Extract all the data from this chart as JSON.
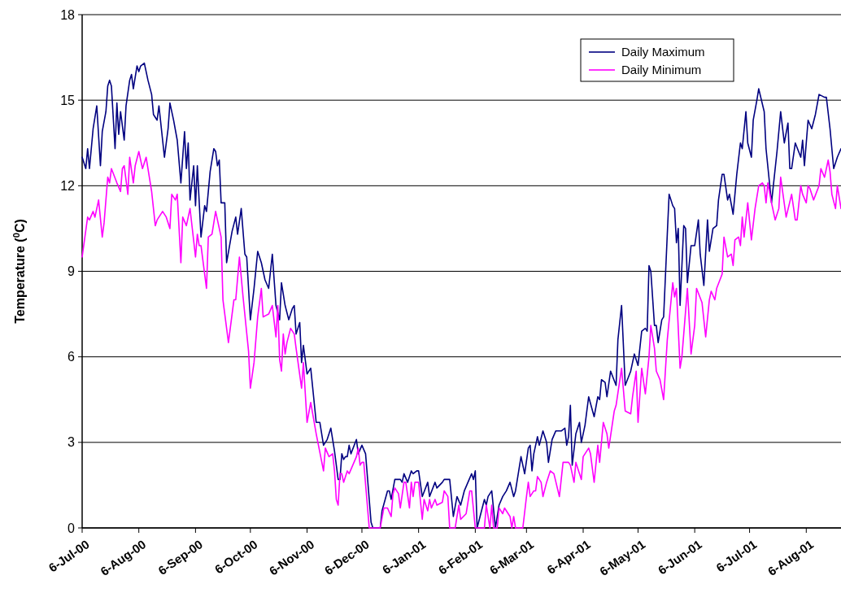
{
  "chart_data": {
    "type": "line",
    "ylabel": "Temperature ($^{0}$C)",
    "xlim": [
      "2000-07-06",
      "2001-08-25"
    ],
    "ylim": [
      0,
      18
    ],
    "yticks": [
      0,
      3,
      6,
      9,
      12,
      15,
      18
    ],
    "xticks": [
      {
        "value": "2000-07-06",
        "label": "6-Jul-00"
      },
      {
        "value": "2000-08-06",
        "label": "6-Aug-00"
      },
      {
        "value": "2000-09-06",
        "label": "6-Sep-00"
      },
      {
        "value": "2000-10-06",
        "label": "6-Oct-00"
      },
      {
        "value": "2000-11-06",
        "label": "6-Nov-00"
      },
      {
        "value": "2000-12-06",
        "label": "6-Dec-00"
      },
      {
        "value": "2001-01-06",
        "label": "6-Jan-01"
      },
      {
        "value": "2001-02-06",
        "label": "6-Feb-01"
      },
      {
        "value": "2001-03-06",
        "label": "6-Mar-01"
      },
      {
        "value": "2001-04-06",
        "label": "6-Apr-01"
      },
      {
        "value": "2001-05-06",
        "label": "6-May-01"
      },
      {
        "value": "2001-06-06",
        "label": "6-Jun-01"
      },
      {
        "value": "2001-07-06",
        "label": "6-Jul-01"
      },
      {
        "value": "2001-08-06",
        "label": "6-Aug-01"
      }
    ],
    "grid": "y",
    "legend": "top right",
    "marker": "none",
    "line_style": "solid",
    "series": [
      {
        "name": "Daily Maximum",
        "color": "#000080",
        "x": [
          "2000-07-06",
          "2000-07-08",
          "2000-07-09",
          "2000-07-10",
          "2000-07-12",
          "2000-07-14",
          "2000-07-16",
          "2000-07-17",
          "2000-07-19",
          "2000-07-20",
          "2000-07-21",
          "2000-07-22",
          "2000-07-24",
          "2000-07-25",
          "2000-07-26",
          "2000-07-27",
          "2000-07-29",
          "2000-07-30",
          "2000-08-01",
          "2000-08-02",
          "2000-08-03",
          "2000-08-05",
          "2000-08-06",
          "2000-08-07",
          "2000-08-09",
          "2000-08-11",
          "2000-08-13",
          "2000-08-14",
          "2000-08-16",
          "2000-08-17",
          "2000-08-20",
          "2000-08-22",
          "2000-08-23",
          "2000-08-25",
          "2000-08-27",
          "2000-08-29",
          "2000-08-31",
          "2000-09-01",
          "2000-09-02",
          "2000-09-03",
          "2000-09-05",
          "2000-09-06",
          "2000-09-07",
          "2000-09-09",
          "2000-09-11",
          "2000-09-12",
          "2000-09-14",
          "2000-09-16",
          "2000-09-17",
          "2000-09-18",
          "2000-09-19",
          "2000-09-20",
          "2000-09-22",
          "2000-09-23",
          "2000-09-26",
          "2000-09-28",
          "2000-09-29",
          "2000-10-01",
          "2000-10-03",
          "2000-10-04",
          "2000-10-06",
          "2000-10-08",
          "2000-10-10",
          "2000-10-12",
          "2000-10-14",
          "2000-10-16",
          "2000-10-18",
          "2000-10-20",
          "2000-10-22",
          "2000-10-23",
          "2000-10-25",
          "2000-10-27",
          "2000-10-29",
          "2000-10-30",
          "2000-10-31",
          "2000-11-02",
          "2000-11-03",
          "2000-11-04",
          "2000-11-06",
          "2000-11-08",
          "2000-11-11",
          "2000-11-13",
          "2000-11-15",
          "2000-11-17",
          "2000-11-19",
          "2000-11-21",
          "2000-11-23",
          "2000-11-24",
          "2000-11-25",
          "2000-11-26",
          "2000-11-27",
          "2000-11-28",
          "2000-11-29",
          "2000-11-30",
          "2000-12-03",
          "2000-12-04",
          "2000-12-06",
          "2000-12-08",
          "2000-12-10",
          "2000-12-11",
          "2000-12-12",
          "2000-12-16",
          "2000-12-17",
          "2000-12-20",
          "2000-12-21",
          "2000-12-22",
          "2000-12-24",
          "2000-12-27",
          "2000-12-28",
          "2000-12-29",
          "2000-12-31",
          "2001-01-02",
          "2001-01-03",
          "2001-01-05",
          "2001-01-06",
          "2001-01-08",
          "2001-01-11",
          "2001-01-12",
          "2001-01-15",
          "2001-01-16",
          "2001-01-19",
          "2001-01-20",
          "2001-01-23",
          "2001-01-25",
          "2001-01-27",
          "2001-01-29",
          "2001-01-31",
          "2001-02-02",
          "2001-02-04",
          "2001-02-05",
          "2001-02-06",
          "2001-02-07",
          "2001-02-09",
          "2001-02-11",
          "2001-02-12",
          "2001-02-13",
          "2001-02-15",
          "2001-02-17",
          "2001-02-19",
          "2001-02-21",
          "2001-02-23",
          "2001-02-25",
          "2001-02-27",
          "2001-02-28",
          "2001-03-03",
          "2001-03-05",
          "2001-03-07",
          "2001-03-08",
          "2001-03-09",
          "2001-03-10",
          "2001-03-12",
          "2001-03-13",
          "2001-03-15",
          "2001-03-17",
          "2001-03-18",
          "2001-03-20",
          "2001-03-22",
          "2001-03-25",
          "2001-03-27",
          "2001-03-28",
          "2001-03-29",
          "2001-03-30",
          "2001-03-31",
          "2001-04-02",
          "2001-04-04",
          "2001-04-05",
          "2001-04-07",
          "2001-04-09",
          "2001-04-12",
          "2001-04-14",
          "2001-04-15",
          "2001-04-16",
          "2001-04-18",
          "2001-04-19",
          "2001-04-21",
          "2001-04-24",
          "2001-04-25",
          "2001-04-27",
          "2001-04-29",
          "2001-05-02",
          "2001-05-03",
          "2001-05-04",
          "2001-05-06",
          "2001-05-07",
          "2001-05-08",
          "2001-05-10",
          "2001-05-11",
          "2001-05-12",
          "2001-05-13",
          "2001-05-15",
          "2001-05-16",
          "2001-05-17",
          "2001-05-19",
          "2001-05-20",
          "2001-05-22",
          "2001-05-23",
          "2001-05-25",
          "2001-05-26",
          "2001-05-27",
          "2001-05-28",
          "2001-05-29",
          "2001-05-31",
          "2001-06-01",
          "2001-06-02",
          "2001-06-04",
          "2001-06-06",
          "2001-06-08",
          "2001-06-09",
          "2001-06-11",
          "2001-06-13",
          "2001-06-14",
          "2001-06-16",
          "2001-06-18",
          "2001-06-19",
          "2001-06-21",
          "2001-06-22",
          "2001-06-24",
          "2001-06-25",
          "2001-06-27",
          "2001-06-29",
          "2001-07-01",
          "2001-07-02",
          "2001-07-04",
          "2001-07-05",
          "2001-07-07",
          "2001-07-08",
          "2001-07-10",
          "2001-07-11",
          "2001-07-14",
          "2001-07-15",
          "2001-07-18",
          "2001-07-21",
          "2001-07-22",
          "2001-07-23",
          "2001-07-25",
          "2001-07-27",
          "2001-07-28",
          "2001-07-29",
          "2001-07-31",
          "2001-08-03",
          "2001-08-04",
          "2001-08-05",
          "2001-08-07",
          "2001-08-09",
          "2001-08-11",
          "2001-08-13",
          "2001-08-16",
          "2001-08-17",
          "2001-08-19",
          "2001-08-21",
          "2001-08-23",
          "2001-08-25"
        ],
        "values": [
          13.0,
          12.6,
          13.3,
          12.6,
          14.0,
          14.8,
          12.7,
          13.9,
          14.6,
          15.5,
          15.7,
          15.5,
          13.3,
          14.9,
          13.8,
          14.6,
          13.6,
          14.8,
          15.7,
          15.9,
          15.4,
          16.2,
          16.0,
          16.2,
          16.3,
          15.7,
          15.2,
          14.5,
          14.3,
          14.8,
          13.0,
          14.0,
          14.9,
          14.3,
          13.6,
          12.1,
          13.9,
          12.6,
          13.5,
          11.5,
          12.7,
          11.3,
          12.7,
          10.2,
          11.3,
          11.1,
          12.5,
          13.3,
          13.2,
          12.7,
          12.9,
          11.4,
          11.4,
          9.3,
          10.4,
          10.9,
          10.3,
          11.2,
          9.6,
          9.5,
          7.3,
          8.4,
          9.7,
          9.3,
          8.7,
          8.4,
          9.6,
          7.8,
          7.3,
          8.6,
          7.8,
          7.3,
          7.7,
          7.8,
          6.8,
          7.2,
          5.8,
          6.4,
          5.4,
          5.6,
          3.7,
          3.7,
          2.9,
          3.1,
          3.5,
          2.7,
          1.7,
          1.7,
          2.6,
          2.4,
          2.5,
          2.5,
          2.9,
          2.6,
          3.1,
          2.6,
          2.9,
          2.6,
          1.0,
          0.2,
          0.0,
          0.0,
          0.6,
          1.3,
          1.3,
          1.0,
          1.7,
          1.7,
          1.6,
          1.9,
          1.6,
          2.0,
          1.9,
          2.0,
          2.0,
          1.1,
          1.6,
          1.1,
          1.6,
          1.4,
          1.6,
          1.7,
          1.7,
          0.4,
          1.1,
          0.8,
          1.3,
          1.6,
          1.9,
          1.7,
          2.0,
          0.0,
          0.5,
          1.0,
          0.8,
          1.1,
          1.3,
          0.0,
          0.8,
          1.1,
          1.3,
          1.6,
          1.1,
          1.3,
          2.5,
          1.9,
          2.8,
          2.9,
          2.0,
          2.6,
          3.2,
          2.9,
          3.4,
          3.0,
          2.3,
          3.1,
          3.4,
          3.4,
          3.5,
          2.9,
          3.2,
          4.3,
          2.2,
          3.3,
          3.7,
          3.0,
          3.6,
          4.6,
          3.9,
          4.6,
          4.5,
          5.2,
          5.1,
          4.6,
          5.5,
          5.0,
          6.6,
          7.8,
          5.0,
          5.5,
          5.8,
          6.1,
          5.7,
          6.3,
          6.9,
          7.0,
          6.9,
          9.2,
          9.0,
          7.1,
          7.1,
          6.5,
          7.3,
          7.4,
          10.3,
          11.7,
          11.3,
          11.2,
          10.0,
          10.5,
          7.8,
          10.6,
          10.5,
          8.6,
          9.9,
          9.9,
          10.8,
          9.6,
          8.5,
          10.8,
          9.7,
          10.5,
          10.6,
          11.5,
          12.4,
          12.4,
          11.5,
          11.7,
          11.0,
          12.4,
          13.5,
          13.3,
          14.6,
          13.5,
          13.0,
          14.3,
          15.0,
          15.4,
          14.6,
          13.3,
          11.4,
          13.2,
          13.9,
          14.6,
          13.5,
          14.2,
          12.6,
          12.6,
          13.5,
          13.0,
          13.6,
          12.7,
          14.3,
          14.0,
          14.5,
          15.2,
          15.1,
          15.1,
          14.0,
          12.6,
          13.0,
          13.3
        ]
      },
      {
        "name": "Daily Minimum",
        "color": "#ff00ff",
        "x": [
          "2000-07-06",
          "2000-07-09",
          "2000-07-10",
          "2000-07-12",
          "2000-07-13",
          "2000-07-15",
          "2000-07-17",
          "2000-07-18",
          "2000-07-20",
          "2000-07-21",
          "2000-07-22",
          "2000-07-25",
          "2000-07-27",
          "2000-07-28",
          "2000-07-29",
          "2000-07-31",
          "2000-08-01",
          "2000-08-03",
          "2000-08-04",
          "2000-08-06",
          "2000-08-08",
          "2000-08-10",
          "2000-08-13",
          "2000-08-15",
          "2000-08-16",
          "2000-08-17",
          "2000-08-19",
          "2000-08-21",
          "2000-08-23",
          "2000-08-24",
          "2000-08-26",
          "2000-08-27",
          "2000-08-29",
          "2000-08-30",
          "2000-09-01",
          "2000-09-03",
          "2000-09-06",
          "2000-09-07",
          "2000-09-08",
          "2000-09-09",
          "2000-09-12",
          "2000-09-13",
          "2000-09-15",
          "2000-09-17",
          "2000-09-20",
          "2000-09-21",
          "2000-09-24",
          "2000-09-27",
          "2000-09-28",
          "2000-09-30",
          "2000-10-02",
          "2000-10-05",
          "2000-10-06",
          "2000-10-08",
          "2000-10-10",
          "2000-10-12",
          "2000-10-13",
          "2000-10-16",
          "2000-10-18",
          "2000-10-20",
          "2000-10-21",
          "2000-10-22",
          "2000-10-23",
          "2000-10-24",
          "2000-10-25",
          "2000-10-26",
          "2000-10-28",
          "2000-10-30",
          "2000-10-31",
          "2000-11-03",
          "2000-11-04",
          "2000-11-06",
          "2000-11-08",
          "2000-11-11",
          "2000-11-15",
          "2000-11-16",
          "2000-11-18",
          "2000-11-20",
          "2000-11-21",
          "2000-11-22",
          "2000-11-23",
          "2000-11-24",
          "2000-11-25",
          "2000-11-26",
          "2000-11-28",
          "2000-11-29",
          "2000-12-01",
          "2000-12-03",
          "2000-12-04",
          "2000-12-05",
          "2000-12-06",
          "2000-12-07",
          "2000-12-10",
          "2000-12-16",
          "2000-12-18",
          "2000-12-20",
          "2000-12-22",
          "2000-12-23",
          "2000-12-24",
          "2000-12-26",
          "2000-12-27",
          "2000-12-29",
          "2000-12-30",
          "2001-01-01",
          "2001-01-02",
          "2001-01-03",
          "2001-01-04",
          "2001-01-06",
          "2001-01-08",
          "2001-01-09",
          "2001-01-11",
          "2001-01-12",
          "2001-01-13",
          "2001-01-15",
          "2001-01-16",
          "2001-01-19",
          "2001-01-20",
          "2001-01-22",
          "2001-01-23",
          "2001-01-26",
          "2001-01-28",
          "2001-01-29",
          "2001-02-01",
          "2001-02-03",
          "2001-02-04",
          "2001-02-06",
          "2001-02-11",
          "2001-02-12",
          "2001-02-14",
          "2001-02-15",
          "2001-02-16",
          "2001-02-18",
          "2001-02-19",
          "2001-02-21",
          "2001-02-22",
          "2001-02-23",
          "2001-02-25",
          "2001-02-26",
          "2001-02-27",
          "2001-02-28",
          "2001-03-04",
          "2001-03-06",
          "2001-03-07",
          "2001-03-08",
          "2001-03-10",
          "2001-03-11",
          "2001-03-12",
          "2001-03-14",
          "2001-03-15",
          "2001-03-17",
          "2001-03-19",
          "2001-03-21",
          "2001-03-24",
          "2001-03-26",
          "2001-03-29",
          "2001-03-30",
          "2001-04-01",
          "2001-04-02",
          "2001-04-05",
          "2001-04-06",
          "2001-04-07",
          "2001-04-09",
          "2001-04-10",
          "2001-04-12",
          "2001-04-14",
          "2001-04-15",
          "2001-04-17",
          "2001-04-19",
          "2001-04-20",
          "2001-04-23",
          "2001-04-24",
          "2001-04-27",
          "2001-04-29",
          "2001-05-02",
          "2001-05-03",
          "2001-05-05",
          "2001-05-06",
          "2001-05-08",
          "2001-05-10",
          "2001-05-12",
          "2001-05-13",
          "2001-05-15",
          "2001-05-16",
          "2001-05-18",
          "2001-05-20",
          "2001-05-22",
          "2001-05-25",
          "2001-05-26",
          "2001-05-27",
          "2001-05-29",
          "2001-05-30",
          "2001-06-02",
          "2001-06-04",
          "2001-06-06",
          "2001-06-07",
          "2001-06-10",
          "2001-06-12",
          "2001-06-14",
          "2001-06-15",
          "2001-06-17",
          "2001-06-18",
          "2001-06-21",
          "2001-06-22",
          "2001-06-24",
          "2001-06-26",
          "2001-06-27",
          "2001-06-28",
          "2001-06-30",
          "2001-07-01",
          "2001-07-02",
          "2001-07-03",
          "2001-07-05",
          "2001-07-07",
          "2001-07-09",
          "2001-07-11",
          "2001-07-13",
          "2001-07-14",
          "2001-07-15",
          "2001-07-16",
          "2001-07-18",
          "2001-07-20",
          "2001-07-22",
          "2001-07-23",
          "2001-07-26",
          "2001-07-29",
          "2001-07-31",
          "2001-08-01",
          "2001-08-03",
          "2001-08-04",
          "2001-08-06",
          "2001-08-07",
          "2001-08-08",
          "2001-08-10",
          "2001-08-13",
          "2001-08-14",
          "2001-08-16",
          "2001-08-18",
          "2001-08-19",
          "2001-08-20",
          "2001-08-22",
          "2001-08-23",
          "2001-08-25"
        ],
        "values": [
          9.5,
          10.9,
          10.8,
          11.1,
          10.9,
          11.5,
          10.2,
          10.7,
          12.3,
          12.1,
          12.6,
          12.1,
          11.8,
          12.6,
          12.7,
          11.7,
          13.0,
          12.1,
          12.7,
          13.2,
          12.6,
          13.0,
          11.8,
          10.6,
          10.8,
          10.9,
          11.1,
          10.9,
          10.5,
          11.7,
          11.5,
          11.7,
          9.3,
          10.9,
          10.6,
          11.2,
          9.5,
          10.3,
          9.9,
          9.9,
          8.4,
          10.2,
          10.3,
          11.1,
          10.2,
          8.0,
          6.5,
          8.0,
          8.0,
          9.5,
          8.1,
          6.2,
          4.9,
          5.8,
          7.4,
          8.4,
          7.4,
          7.5,
          7.8,
          6.7,
          7.8,
          5.9,
          5.5,
          6.8,
          6.1,
          6.5,
          7.0,
          6.8,
          6.3,
          4.9,
          5.8,
          3.7,
          4.4,
          3.3,
          2.0,
          2.8,
          2.5,
          2.6,
          2.0,
          1.0,
          0.8,
          1.9,
          1.9,
          1.6,
          2.0,
          1.9,
          2.2,
          2.5,
          2.8,
          2.2,
          2.3,
          2.3,
          0.0,
          0.0,
          0.7,
          0.7,
          0.4,
          1.2,
          1.4,
          1.2,
          0.7,
          1.6,
          1.6,
          0.7,
          1.6,
          1.1,
          1.6,
          1.6,
          0.3,
          1.0,
          0.6,
          1.0,
          0.7,
          1.0,
          0.8,
          0.9,
          1.3,
          1.1,
          0.0,
          0.0,
          0.8,
          0.3,
          0.5,
          1.3,
          1.3,
          0.0,
          0.0,
          0.8,
          0.0,
          0.8,
          0.0,
          0.0,
          0.7,
          0.5,
          0.7,
          0.6,
          0.4,
          0.0,
          0.4,
          0.0,
          0.0,
          1.1,
          1.6,
          1.1,
          1.3,
          1.3,
          1.8,
          1.6,
          1.1,
          1.6,
          2.0,
          1.9,
          1.1,
          2.3,
          2.3,
          2.2,
          1.6,
          2.3,
          1.7,
          2.5,
          2.6,
          2.8,
          2.6,
          1.6,
          2.9,
          2.3,
          3.7,
          3.3,
          2.8,
          4.1,
          4.3,
          5.6,
          4.1,
          4.0,
          4.6,
          5.5,
          3.7,
          5.6,
          4.7,
          6.0,
          7.1,
          6.3,
          5.5,
          5.2,
          4.5,
          6.6,
          8.6,
          8.1,
          8.4,
          5.6,
          6.0,
          8.4,
          6.1,
          7.1,
          8.4,
          7.9,
          6.7,
          8.0,
          8.3,
          8.0,
          8.4,
          8.9,
          10.2,
          9.5,
          9.6,
          9.2,
          10.1,
          10.2,
          9.9,
          10.9,
          10.2,
          11.4,
          10.1,
          11.2,
          12.0,
          12.1,
          12.0,
          11.4,
          12.1,
          11.4,
          10.8,
          11.2,
          12.3,
          10.9,
          11.7,
          10.8,
          10.8,
          12.0,
          11.7,
          11.4,
          12.0,
          11.9,
          11.5,
          12.0,
          12.6,
          12.3,
          12.9,
          12.5,
          11.7,
          11.2,
          12.0,
          11.2
        ]
      }
    ]
  }
}
